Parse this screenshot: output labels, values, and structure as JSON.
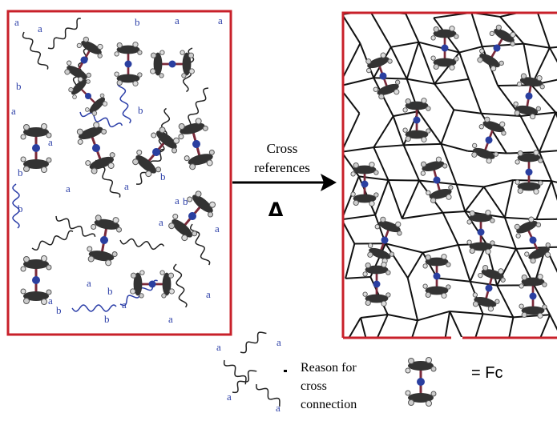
{
  "arrow": {
    "label_line1": "Cross",
    "label_line2": "references",
    "symbol": "Δ"
  },
  "left_panel": {
    "labels": [
      "a",
      "a",
      "b",
      "a",
      "a",
      "b",
      "b",
      "a",
      "a",
      "b",
      "a",
      "b",
      "a",
      "b",
      "a",
      "a",
      "a",
      "b",
      "a",
      "b",
      "b",
      "a",
      "a",
      "a",
      "a",
      "b"
    ]
  },
  "legend": {
    "icon_labels": [
      "a",
      "a",
      "a",
      "a"
    ],
    "reason_line1": "Reason for",
    "reason_line2": "cross",
    "reason_line3": "connection",
    "fc_label": "= Fc"
  }
}
